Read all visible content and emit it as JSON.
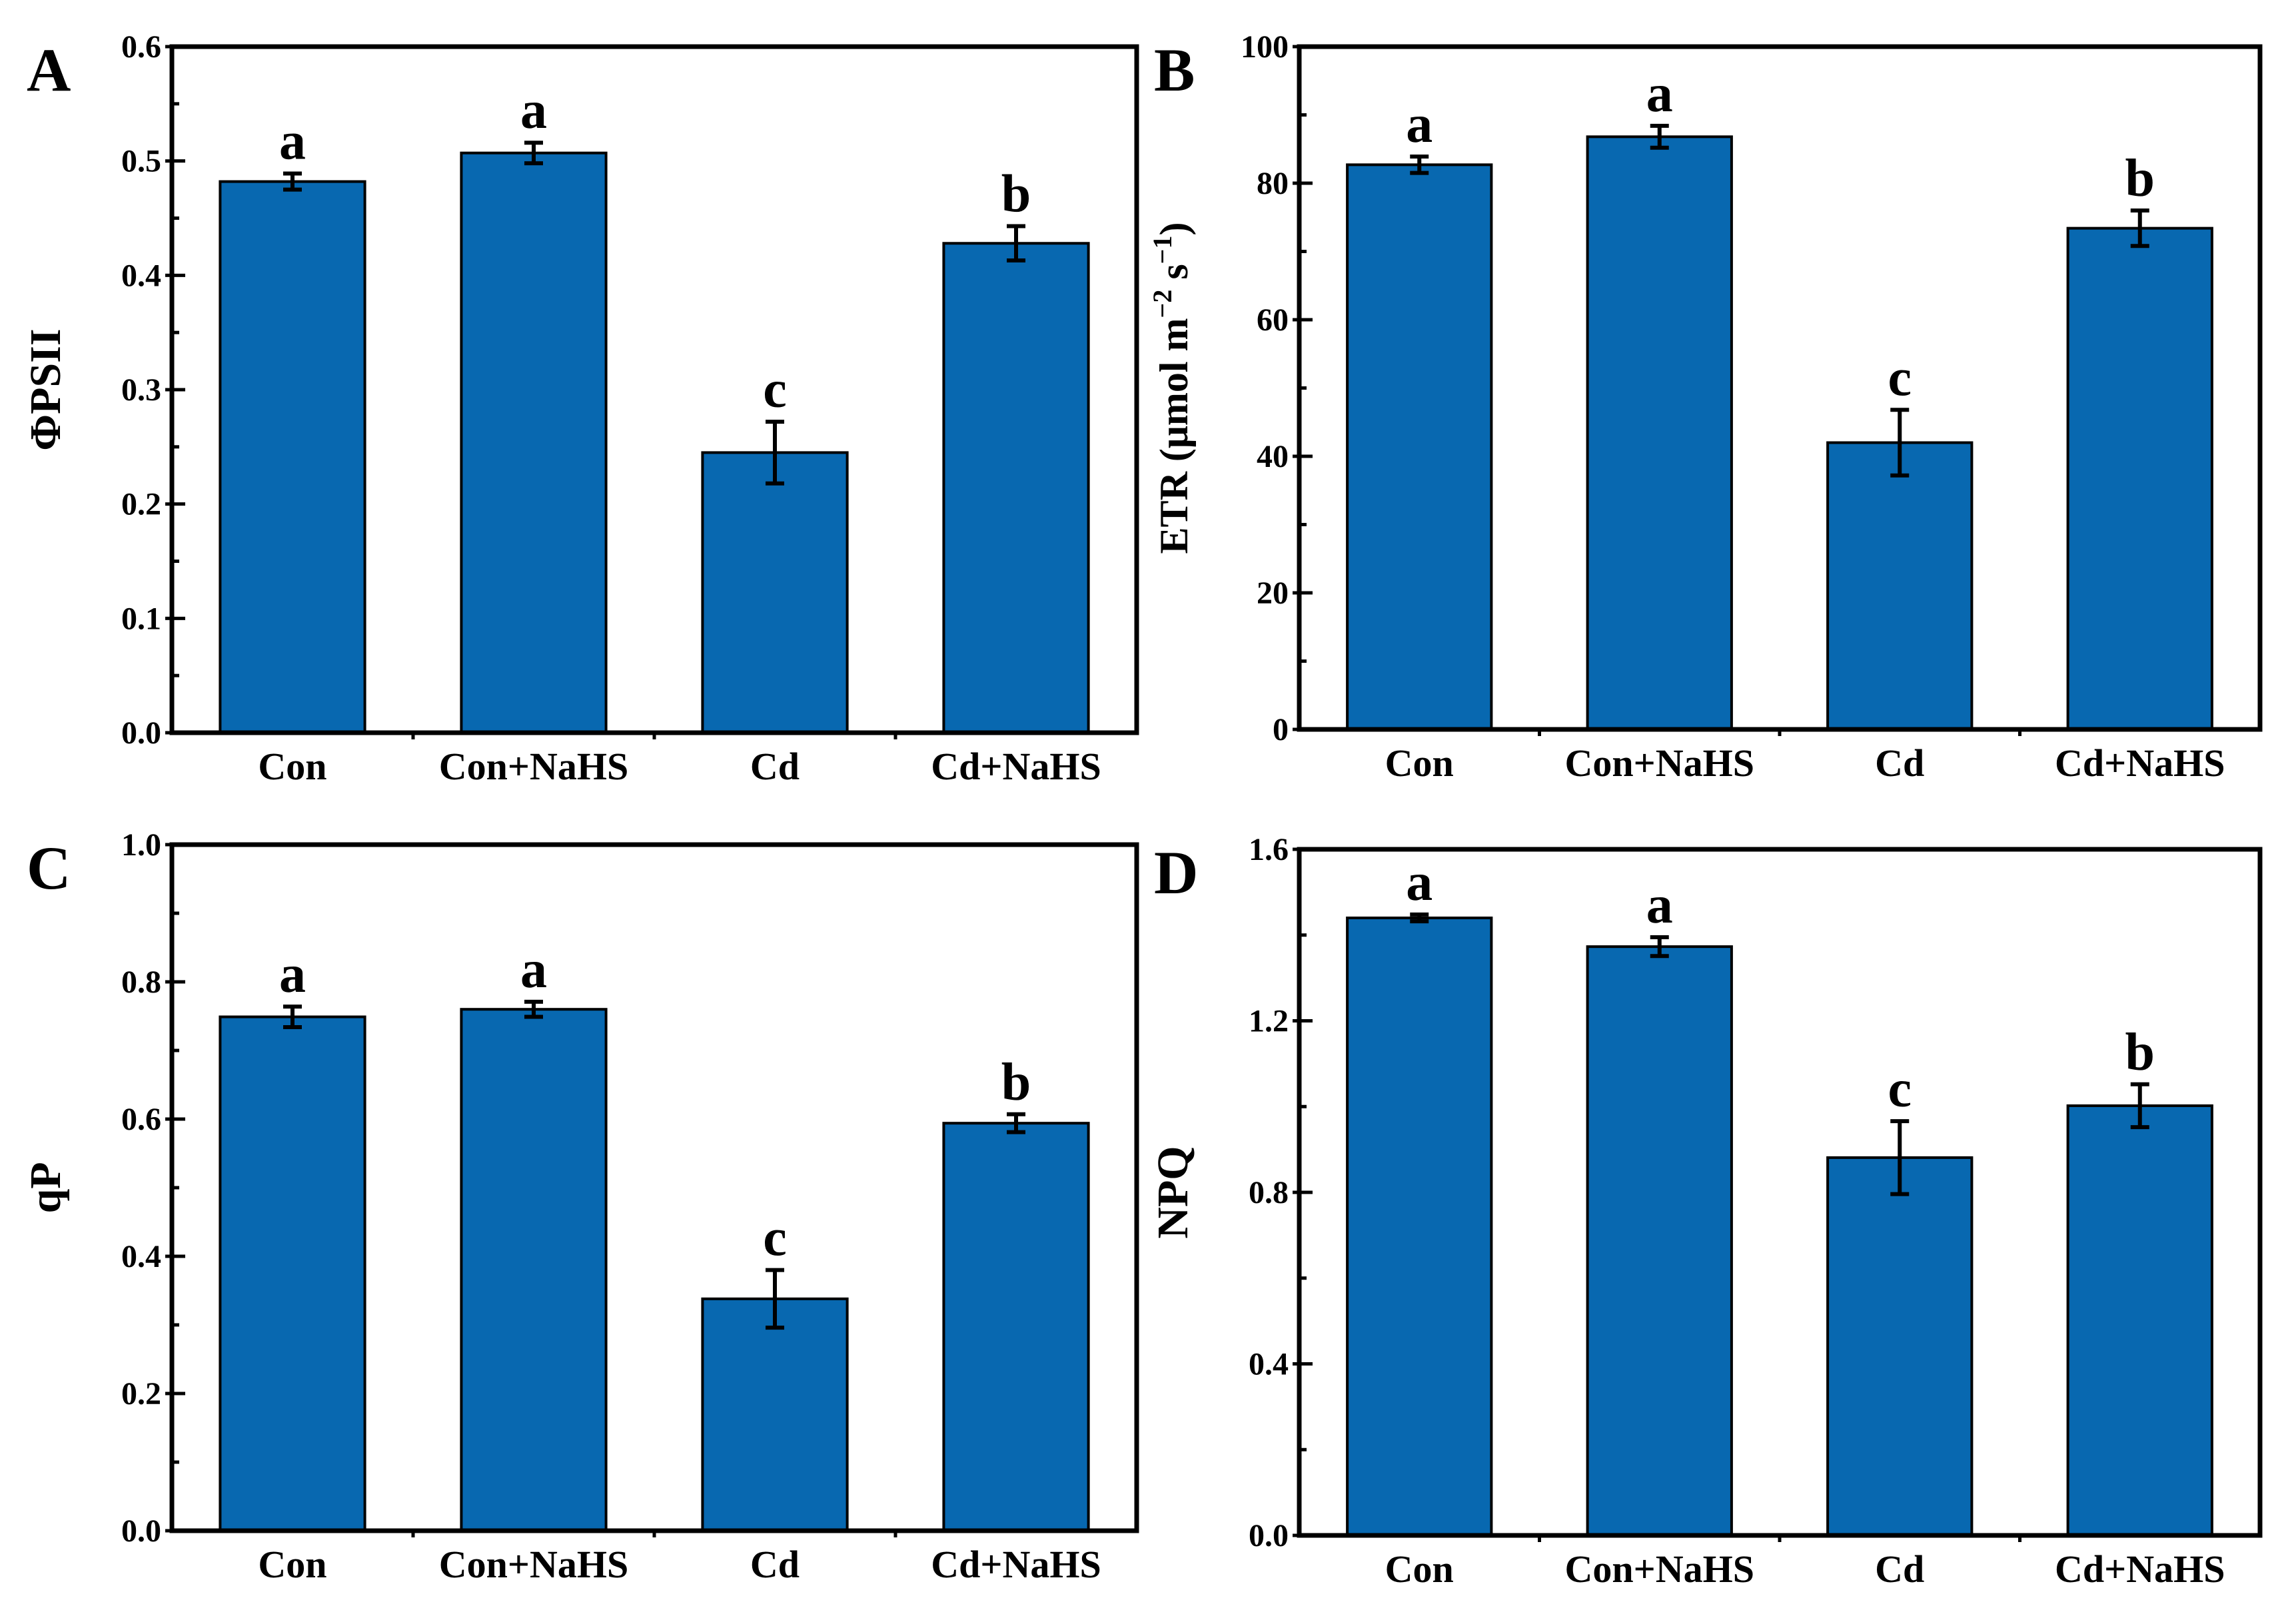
{
  "colors": {
    "bar": "#0868B0",
    "ink": "#000000",
    "background": "#ffffff"
  },
  "chart_data": [
    {
      "type": "bar",
      "panel": "A",
      "ylabel": "ΦPSII",
      "ylabel_parts": [],
      "ylim": [
        0,
        0.6
      ],
      "yticks": [
        0.0,
        0.1,
        0.2,
        0.3,
        0.4,
        0.5,
        0.6
      ],
      "ytick_labels": [
        "0.0",
        "0.1",
        "0.2",
        "0.3",
        "0.4",
        "0.5",
        "0.6"
      ],
      "categories": [
        "Con",
        "Con+NaHS",
        "Cd",
        "Cd+NaHS"
      ],
      "values": [
        0.482,
        0.507,
        0.245,
        0.428
      ],
      "errors": [
        0.007,
        0.009,
        0.027,
        0.015
      ],
      "letters": [
        "a",
        "a",
        "c",
        "b"
      ]
    },
    {
      "type": "bar",
      "panel": "B",
      "ylabel": "ETR (μmol m−2 s−1)",
      "ylabel_parts": [
        {
          "text": "ETR (μmol m",
          "sup": false
        },
        {
          "text": "−2",
          "sup": true
        },
        {
          "text": " s",
          "sup": false
        },
        {
          "text": "−1",
          "sup": true
        },
        {
          "text": ")",
          "sup": false
        }
      ],
      "ylim": [
        0,
        100
      ],
      "yticks": [
        0,
        20,
        40,
        60,
        80,
        100
      ],
      "ytick_labels": [
        "0",
        "20",
        "40",
        "60",
        "80",
        "100"
      ],
      "categories": [
        "Con",
        "Con+NaHS",
        "Cd",
        "Cd+NaHS"
      ],
      "values": [
        82.7,
        86.8,
        42.0,
        73.4
      ],
      "errors": [
        1.2,
        1.6,
        4.8,
        2.6
      ],
      "letters": [
        "a",
        "a",
        "c",
        "b"
      ]
    },
    {
      "type": "bar",
      "panel": "C",
      "ylabel": "qP",
      "ylabel_parts": [],
      "ylim": [
        0,
        1.0
      ],
      "yticks": [
        0.0,
        0.2,
        0.4,
        0.6,
        0.8,
        1.0
      ],
      "ytick_labels": [
        "0.0",
        "0.2",
        "0.4",
        "0.6",
        "0.8",
        "1.0"
      ],
      "categories": [
        "Con",
        "Con+NaHS",
        "Cd",
        "Cd+NaHS"
      ],
      "values": [
        0.749,
        0.76,
        0.338,
        0.594
      ],
      "errors": [
        0.015,
        0.011,
        0.042,
        0.013
      ],
      "letters": [
        "a",
        "a",
        "c",
        "b"
      ]
    },
    {
      "type": "bar",
      "panel": "D",
      "ylabel": "NPQ",
      "ylabel_parts": [],
      "ylim": [
        0,
        1.6
      ],
      "yticks": [
        0.0,
        0.4,
        0.8,
        1.2,
        1.6
      ],
      "ytick_labels": [
        "0.0",
        "0.4",
        "0.8",
        "1.2",
        "1.6"
      ],
      "categories": [
        "Con",
        "Con+NaHS",
        "Cd",
        "Cd+NaHS"
      ],
      "values": [
        1.44,
        1.373,
        0.881,
        1.002
      ],
      "errors": [
        0.008,
        0.022,
        0.085,
        0.05
      ],
      "letters": [
        "a",
        "a",
        "c",
        "b"
      ]
    }
  ]
}
